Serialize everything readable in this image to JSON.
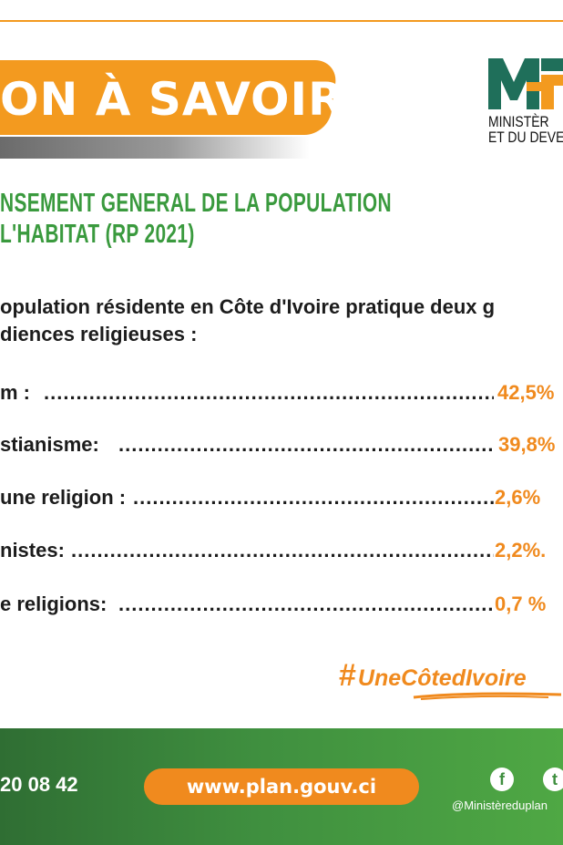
{
  "banner": {
    "title": "ON À SAVOIR"
  },
  "logo": {
    "mark_text": "MF",
    "line1": "MINISTÈR",
    "line2": "ET DU DEVE"
  },
  "heading": {
    "line1": "NSEMENT GENERAL DE LA POPULATION",
    "line2": "L'HABITAT (RP 2021)"
  },
  "intro": {
    "line1": "opulation résidente en Côte d'Ivoire pratique deux g",
    "line2": "diences religieuses :"
  },
  "stats": [
    {
      "label": "m :",
      "value": "42,5%"
    },
    {
      "label": "stianisme:",
      "value": "39,8%"
    },
    {
      "label": "une religion :",
      "value": "2,6%"
    },
    {
      "label": "nistes:",
      "value": "2,2%."
    },
    {
      "label": "e religions:",
      "value": "0,7 %"
    }
  ],
  "hashtag": {
    "sign": "#",
    "text": "UneCôtedIvoire"
  },
  "footer": {
    "phone": "20 08 42",
    "url": "www.plan.gouv.ci",
    "handle": "@Ministèreduplan",
    "social_icons": [
      "facebook-icon",
      "twitter-icon"
    ]
  },
  "colors": {
    "accent_orange": "#f39a1f",
    "value_orange": "#f08a1e",
    "heading_green": "#3a9a3e",
    "footer_green": "#3f8f3f",
    "logo_green": "#1f6f5a"
  }
}
